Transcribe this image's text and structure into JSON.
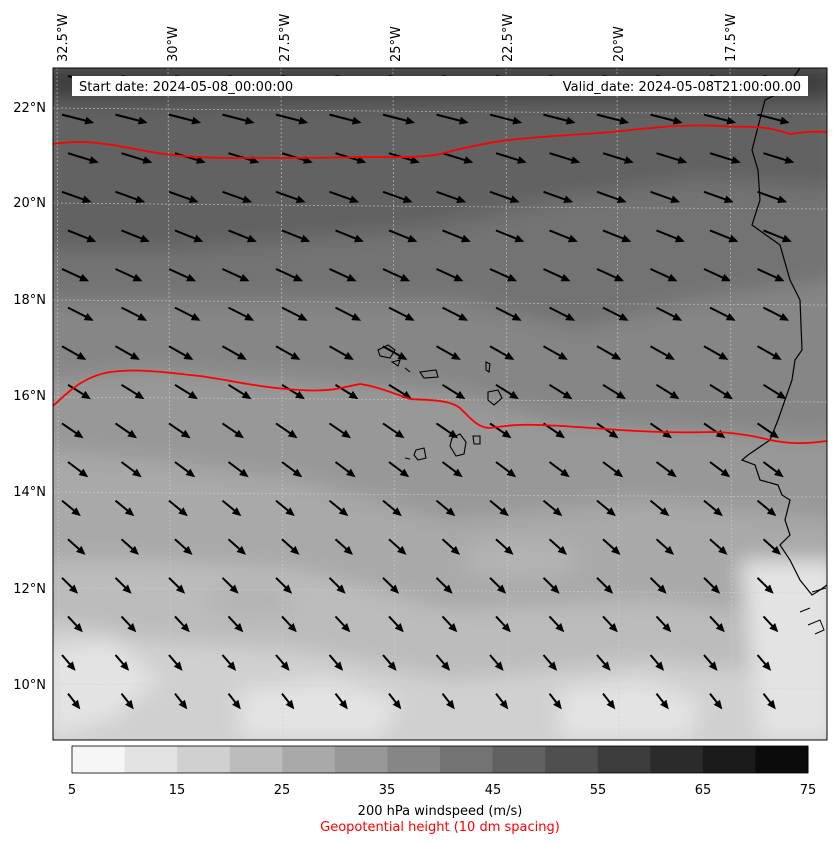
{
  "header": {
    "start_date": "Start date: 2024-05-08_00:00:00",
    "valid_date": "Valid_date: 2024-05-08T21:00:00.00"
  },
  "axes": {
    "lon_labels": [
      "32.5°W",
      "30°W",
      "27.5°W",
      "25°W",
      "22.5°W",
      "20°W",
      "17.5°W"
    ],
    "lat_labels": [
      "22°N",
      "20°N",
      "18°N",
      "16°N",
      "14°N",
      "12°N",
      "10°N"
    ]
  },
  "colorbar": {
    "ticks": [
      "5",
      "15",
      "25",
      "35",
      "45",
      "55",
      "65",
      "75"
    ],
    "colors": [
      "#f6f6f6",
      "#e3e3e3",
      "#d0d0d0",
      "#bcbcbc",
      "#a9a9a9",
      "#989898",
      "#868686",
      "#737373",
      "#616161",
      "#4f4f4f",
      "#3c3c3c",
      "#2b2b2b",
      "#1b1b1b",
      "#0b0b0b"
    ],
    "label": "200 hPa windspeed (m/s)",
    "sublabel": "Geopotential height (10 dm spacing)",
    "sublabel_color": "#ff0000"
  },
  "contour_color": "#ff0000"
}
